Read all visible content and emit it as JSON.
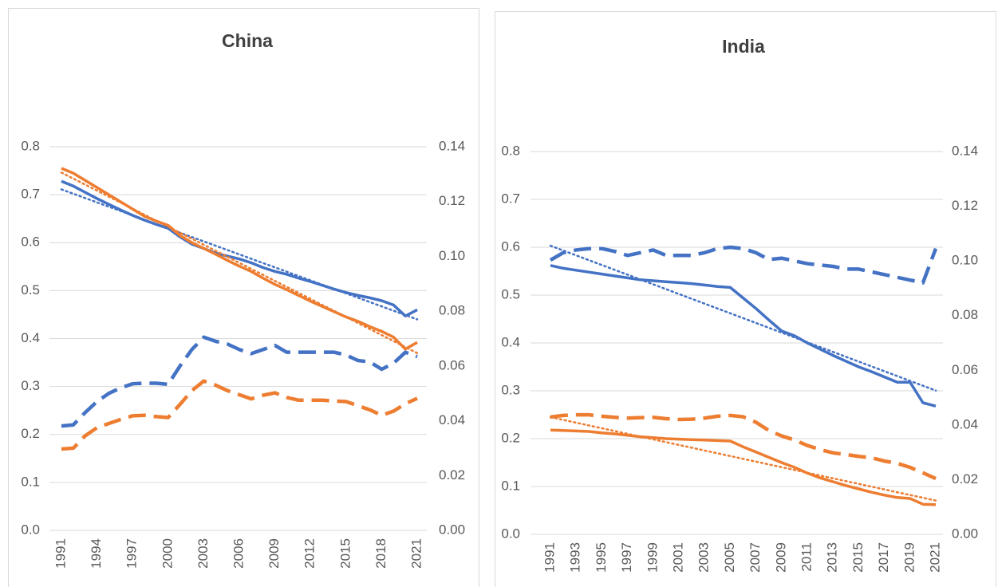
{
  "chart_data": [
    {
      "type": "line",
      "title": "China",
      "x": [
        1991,
        1992,
        1993,
        1994,
        1995,
        1996,
        1997,
        1998,
        1999,
        2000,
        2001,
        2002,
        2003,
        2004,
        2005,
        2006,
        2007,
        2008,
        2009,
        2010,
        2011,
        2012,
        2013,
        2014,
        2015,
        2016,
        2017,
        2018,
        2019,
        2020,
        2021
      ],
      "xlim": [
        1991,
        2021
      ],
      "xticks": [
        1991,
        1994,
        1997,
        2000,
        2003,
        2006,
        2009,
        2012,
        2015,
        2018,
        2021
      ],
      "ylim": [
        0,
        0.8
      ],
      "yticks": [
        {
          "value": 0,
          "label": "0.0"
        },
        0.1,
        0.2,
        0.3,
        0.4,
        0.5,
        0.6,
        0.7,
        0.8
      ],
      "y2lim": [
        0,
        0.14
      ],
      "y2ticks": [
        {
          "value": 0,
          "label": "0.00"
        },
        {
          "value": 0.02,
          "label": "0.02"
        },
        {
          "value": 0.04,
          "label": "0.04"
        },
        {
          "value": 0.06,
          "label": "0.06"
        },
        {
          "value": 0.08,
          "label": "0.08"
        },
        {
          "value": 0.1,
          "label": "0.10"
        },
        {
          "value": 0.12,
          "label": "0.12"
        },
        {
          "value": 0.14,
          "label": "0.14"
        }
      ],
      "grid": true,
      "series": [
        {
          "color": "#4472c4",
          "style": "solid",
          "trendline": "linear",
          "values": [
            0.728,
            0.718,
            0.705,
            0.692,
            0.68,
            0.668,
            0.657,
            0.647,
            0.638,
            0.63,
            0.612,
            0.597,
            0.588,
            0.578,
            0.572,
            0.566,
            0.558,
            0.548,
            0.54,
            0.534,
            0.526,
            0.519,
            0.511,
            0.503,
            0.496,
            0.49,
            0.485,
            0.479,
            0.47,
            0.447,
            0.46
          ]
        },
        {
          "color": "#ed7d31",
          "style": "solid",
          "trendline": "linear",
          "values": [
            0.755,
            0.745,
            0.73,
            0.715,
            0.7,
            0.685,
            0.67,
            0.655,
            0.645,
            0.636,
            0.615,
            0.6,
            0.588,
            0.576,
            0.563,
            0.551,
            0.54,
            0.526,
            0.513,
            0.502,
            0.49,
            0.478,
            0.467,
            0.456,
            0.445,
            0.436,
            0.425,
            0.415,
            0.403,
            0.378,
            0.392
          ]
        },
        {
          "color": "#4472c4",
          "style": "dashed",
          "axis": "y2",
          "values": [
            0.0381,
            0.0385,
            0.043,
            0.047,
            0.05,
            0.052,
            0.0535,
            0.0537,
            0.0537,
            0.0533,
            0.06,
            0.066,
            0.0705,
            0.069,
            0.068,
            0.066,
            0.0645,
            0.066,
            0.0675,
            0.065,
            0.065,
            0.065,
            0.065,
            0.065,
            0.064,
            0.062,
            0.0615,
            0.0588,
            0.061,
            0.065,
            0.0634
          ]
        },
        {
          "color": "#ed7d31",
          "style": "dashed",
          "axis": "y2",
          "values": [
            0.0297,
            0.03,
            0.0345,
            0.0375,
            0.039,
            0.0405,
            0.0418,
            0.042,
            0.0415,
            0.0412,
            0.046,
            0.051,
            0.0545,
            0.053,
            0.051,
            0.0495,
            0.048,
            0.0493,
            0.0502,
            0.0485,
            0.0475,
            0.0475,
            0.0475,
            0.0472,
            0.047,
            0.0455,
            0.044,
            0.042,
            0.0435,
            0.0462,
            0.0482
          ]
        }
      ]
    },
    {
      "type": "line",
      "title": "India",
      "x": [
        1991,
        1992,
        1993,
        1994,
        1995,
        1996,
        1997,
        1998,
        1999,
        2000,
        2001,
        2002,
        2003,
        2004,
        2005,
        2006,
        2007,
        2008,
        2009,
        2010,
        2011,
        2012,
        2013,
        2014,
        2015,
        2016,
        2017,
        2018,
        2019,
        2020,
        2021
      ],
      "xlim": [
        1991,
        2021
      ],
      "xticks": [
        1991,
        1993,
        1995,
        1997,
        1999,
        2001,
        2003,
        2005,
        2007,
        2009,
        2011,
        2013,
        2015,
        2017,
        2019,
        2021
      ],
      "ylim": [
        0,
        0.8
      ],
      "yticks": [
        {
          "value": 0,
          "label": "0.0"
        },
        0.1,
        0.2,
        0.3,
        0.4,
        0.5,
        0.6,
        0.7,
        0.8
      ],
      "y2lim": [
        0,
        0.14
      ],
      "y2ticks": [
        {
          "value": 0,
          "label": "0.00"
        },
        {
          "value": 0.02,
          "label": "0.02"
        },
        {
          "value": 0.04,
          "label": "0.04"
        },
        {
          "value": 0.06,
          "label": "0.06"
        },
        {
          "value": 0.08,
          "label": "0.08"
        },
        {
          "value": 0.1,
          "label": "0.10"
        },
        {
          "value": 0.12,
          "label": "0.12"
        },
        {
          "value": 0.14,
          "label": "0.14"
        }
      ],
      "grid": true,
      "series": [
        {
          "color": "#4472c4",
          "style": "solid",
          "trendline": "linear",
          "values": [
            0.562,
            0.556,
            0.552,
            0.548,
            0.544,
            0.54,
            0.536,
            0.532,
            0.53,
            0.528,
            0.526,
            0.524,
            0.521,
            0.518,
            0.516,
            0.494,
            0.472,
            0.448,
            0.425,
            0.415,
            0.4,
            0.387,
            0.374,
            0.362,
            0.35,
            0.34,
            0.329,
            0.318,
            0.318,
            0.275,
            0.268
          ]
        },
        {
          "color": "#ed7d31",
          "style": "solid",
          "trendline": "linear",
          "values": [
            0.218,
            0.217,
            0.216,
            0.215,
            0.212,
            0.21,
            0.207,
            0.204,
            0.202,
            0.2,
            0.199,
            0.198,
            0.197,
            0.196,
            0.195,
            0.183,
            0.172,
            0.161,
            0.15,
            0.14,
            0.128,
            0.118,
            0.11,
            0.102,
            0.095,
            0.088,
            0.082,
            0.077,
            0.075,
            0.063,
            0.062
          ]
        },
        {
          "color": "#4472c4",
          "style": "dashed",
          "axis": "y2",
          "values": [
            0.1003,
            0.103,
            0.104,
            0.1045,
            0.1045,
            0.1035,
            0.102,
            0.103,
            0.104,
            0.102,
            0.102,
            0.102,
            0.103,
            0.1045,
            0.105,
            0.1045,
            0.103,
            0.1005,
            0.101,
            0.1,
            0.099,
            0.0985,
            0.098,
            0.097,
            0.097,
            0.096,
            0.095,
            0.094,
            0.093,
            0.092,
            0.1045
          ]
        },
        {
          "color": "#ed7d31",
          "style": "dashed",
          "axis": "y2",
          "values": [
            0.0429,
            0.0435,
            0.0437,
            0.0437,
            0.0432,
            0.0428,
            0.0425,
            0.0427,
            0.0428,
            0.0423,
            0.042,
            0.0421,
            0.0425,
            0.0432,
            0.0435,
            0.043,
            0.041,
            0.038,
            0.036,
            0.0345,
            0.0325,
            0.031,
            0.0298,
            0.0292,
            0.0285,
            0.028,
            0.0268,
            0.026,
            0.0245,
            0.0225,
            0.0204
          ]
        }
      ]
    }
  ]
}
